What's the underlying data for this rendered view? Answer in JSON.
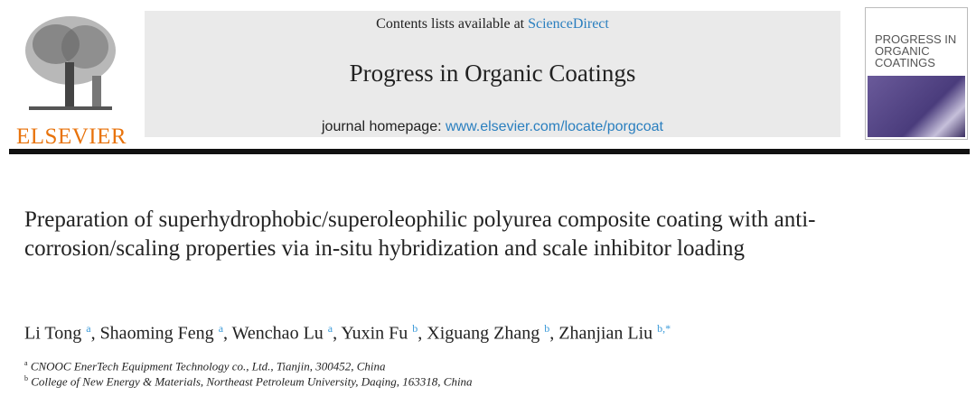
{
  "header": {
    "publisher": "ELSEVIER",
    "contents_prefix": "Contents lists available at ",
    "contents_link": "ScienceDirect",
    "journal": "Progress in Organic Coatings",
    "homepage_prefix": "journal homepage: ",
    "homepage_link": "www.elsevier.com/locate/porgcoat",
    "cover_title": "PROGRESS IN ORGANIC COATINGS"
  },
  "article": {
    "title": "Preparation of superhydrophobic/superoleophilic polyurea composite coating with anti-corrosion/scaling properties via in-situ hybridization and scale inhibitor loading",
    "authors": [
      {
        "name": "Li Tong",
        "aff": "a"
      },
      {
        "name": "Shaoming Feng",
        "aff": "a"
      },
      {
        "name": "Wenchao Lu",
        "aff": "a"
      },
      {
        "name": "Yuxin Fu",
        "aff": "b"
      },
      {
        "name": "Xiguang Zhang",
        "aff": "b"
      },
      {
        "name": "Zhanjian Liu",
        "aff": "b,*"
      }
    ],
    "affiliations": [
      {
        "label": "a",
        "text": "CNOOC EnerTech Equipment Technology co., Ltd., Tianjin, 300452, China"
      },
      {
        "label": "b",
        "text": "College of New Energy & Materials, Northeast Petroleum University, Daqing, 163318, China"
      }
    ]
  },
  "colors": {
    "publisher": "#e8730c",
    "link": "#2a7fbf",
    "superscript": "#3a9ad9"
  }
}
